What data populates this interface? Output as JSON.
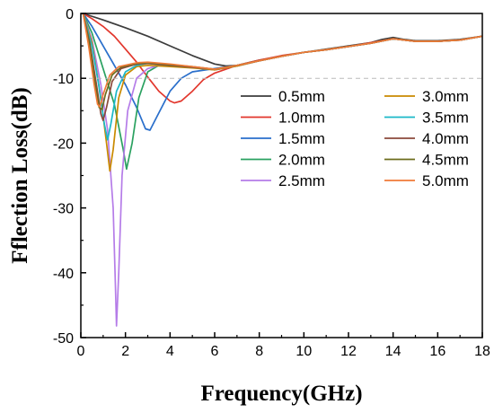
{
  "chart_data": {
    "type": "line",
    "title": "",
    "xlabel": "Frequency(GHz)",
    "ylabel": "Fflection Loss(dB)",
    "xlim": [
      0,
      18
    ],
    "ylim": [
      -50,
      0
    ],
    "xticks": [
      0,
      2,
      4,
      6,
      8,
      10,
      12,
      14,
      16,
      18
    ],
    "yticks": [
      0,
      -10,
      -20,
      -30,
      -40,
      -50
    ],
    "reference_line": {
      "y": -10,
      "style": "dashed",
      "color": "#bbbbbb"
    },
    "grid": false,
    "legend_position": "right-middle",
    "series": [
      {
        "name": "0.5mm",
        "color": "#3c3c3c",
        "points": [
          [
            0.1,
            0
          ],
          [
            1,
            -1
          ],
          [
            2,
            -2.2
          ],
          [
            3,
            -3.5
          ],
          [
            4,
            -5
          ],
          [
            5,
            -6.5
          ],
          [
            6,
            -7.8
          ],
          [
            6.5,
            -8.1
          ],
          [
            7,
            -8.0
          ],
          [
            8,
            -7.2
          ],
          [
            9,
            -6.6
          ],
          [
            10,
            -6.0
          ],
          [
            11,
            -5.5
          ],
          [
            12,
            -5.0
          ],
          [
            13,
            -4.5
          ],
          [
            13.5,
            -4.0
          ],
          [
            14,
            -3.7
          ],
          [
            14.5,
            -4.0
          ],
          [
            15,
            -4.2
          ],
          [
            16,
            -4.2
          ],
          [
            17,
            -4.0
          ],
          [
            18,
            -3.5
          ]
        ]
      },
      {
        "name": "1.0mm",
        "color": "#e2372d",
        "points": [
          [
            0.1,
            0
          ],
          [
            0.5,
            -0.8
          ],
          [
            1,
            -2.0
          ],
          [
            1.5,
            -3.5
          ],
          [
            2,
            -5.5
          ],
          [
            2.5,
            -7.5
          ],
          [
            3,
            -9.8
          ],
          [
            3.5,
            -12
          ],
          [
            4,
            -13.5
          ],
          [
            4.2,
            -13.8
          ],
          [
            4.5,
            -13.5
          ],
          [
            5,
            -12
          ],
          [
            5.5,
            -10.2
          ],
          [
            6,
            -9.2
          ],
          [
            7,
            -8.0
          ],
          [
            8,
            -7.2
          ],
          [
            9,
            -6.5
          ],
          [
            10,
            -6.0
          ],
          [
            11,
            -5.6
          ],
          [
            12,
            -5.1
          ],
          [
            13,
            -4.5
          ],
          [
            14,
            -3.9
          ],
          [
            15,
            -4.3
          ],
          [
            16,
            -4.3
          ],
          [
            17,
            -4.1
          ],
          [
            18,
            -3.5
          ]
        ]
      },
      {
        "name": "1.5mm",
        "color": "#2a6fcb",
        "points": [
          [
            0.1,
            0
          ],
          [
            0.5,
            -2
          ],
          [
            1,
            -5
          ],
          [
            1.5,
            -8
          ],
          [
            2,
            -11
          ],
          [
            2.5,
            -14.5
          ],
          [
            2.9,
            -17.8
          ],
          [
            3.1,
            -18.0
          ],
          [
            3.4,
            -16
          ],
          [
            4,
            -12
          ],
          [
            4.5,
            -10
          ],
          [
            5,
            -9
          ],
          [
            6,
            -8.5
          ],
          [
            7,
            -8.0
          ],
          [
            8,
            -7.3
          ],
          [
            9,
            -6.6
          ],
          [
            10,
            -6.0
          ],
          [
            11,
            -5.6
          ],
          [
            12,
            -5.1
          ],
          [
            13,
            -4.6
          ],
          [
            14,
            -3.9
          ],
          [
            15,
            -4.3
          ],
          [
            16,
            -4.3
          ],
          [
            17,
            -4.1
          ],
          [
            18,
            -3.5
          ]
        ]
      },
      {
        "name": "2.0mm",
        "color": "#2aa160",
        "points": [
          [
            0.1,
            0
          ],
          [
            0.5,
            -3
          ],
          [
            1,
            -8.5
          ],
          [
            1.5,
            -14
          ],
          [
            1.9,
            -21
          ],
          [
            2.05,
            -24
          ],
          [
            2.3,
            -20
          ],
          [
            2.6,
            -13
          ],
          [
            3,
            -9
          ],
          [
            3.5,
            -8
          ],
          [
            4,
            -8
          ],
          [
            5,
            -8.3
          ],
          [
            6,
            -8.7
          ],
          [
            7,
            -8.1
          ],
          [
            8,
            -7.3
          ],
          [
            9,
            -6.6
          ],
          [
            10,
            -6.0
          ],
          [
            11,
            -5.6
          ],
          [
            12,
            -5.1
          ],
          [
            13,
            -4.6
          ],
          [
            14,
            -3.9
          ],
          [
            15,
            -4.3
          ],
          [
            16,
            -4.3
          ],
          [
            17,
            -4.1
          ],
          [
            18,
            -3.5
          ]
        ]
      },
      {
        "name": "2.5mm",
        "color": "#b57ce8",
        "points": [
          [
            0.1,
            0
          ],
          [
            0.5,
            -4
          ],
          [
            0.9,
            -11
          ],
          [
            1.2,
            -18
          ],
          [
            1.45,
            -30
          ],
          [
            1.55,
            -42
          ],
          [
            1.6,
            -48.2
          ],
          [
            1.7,
            -40
          ],
          [
            1.85,
            -25
          ],
          [
            2.1,
            -15
          ],
          [
            2.5,
            -10
          ],
          [
            3,
            -8.5
          ],
          [
            3.5,
            -8
          ],
          [
            4,
            -8
          ],
          [
            5,
            -8.3
          ],
          [
            6,
            -8.7
          ],
          [
            7,
            -8.1
          ],
          [
            8,
            -7.3
          ],
          [
            9,
            -6.6
          ],
          [
            10,
            -6.0
          ],
          [
            11,
            -5.6
          ],
          [
            12,
            -5.1
          ],
          [
            13,
            -4.6
          ],
          [
            14,
            -3.9
          ],
          [
            15,
            -4.3
          ],
          [
            16,
            -4.3
          ],
          [
            17,
            -4.1
          ],
          [
            18,
            -3.5
          ]
        ]
      },
      {
        "name": "3.0mm",
        "color": "#c98a00",
        "points": [
          [
            0.1,
            0
          ],
          [
            0.5,
            -4.5
          ],
          [
            0.9,
            -13
          ],
          [
            1.15,
            -20
          ],
          [
            1.3,
            -24.3
          ],
          [
            1.45,
            -21
          ],
          [
            1.7,
            -13
          ],
          [
            2,
            -9.5
          ],
          [
            2.5,
            -8.2
          ],
          [
            3,
            -8
          ],
          [
            4,
            -8.2
          ],
          [
            5,
            -8.4
          ],
          [
            6,
            -8.7
          ],
          [
            7,
            -8.1
          ],
          [
            8,
            -7.3
          ],
          [
            9,
            -6.6
          ],
          [
            10,
            -6.0
          ],
          [
            11,
            -5.6
          ],
          [
            12,
            -5.1
          ],
          [
            13,
            -4.6
          ],
          [
            14,
            -3.9
          ],
          [
            15,
            -4.3
          ],
          [
            16,
            -4.3
          ],
          [
            17,
            -4.1
          ],
          [
            18,
            -3.5
          ]
        ]
      },
      {
        "name": "3.5mm",
        "color": "#1bb8c8",
        "points": [
          [
            0.1,
            0
          ],
          [
            0.5,
            -5
          ],
          [
            0.8,
            -11
          ],
          [
            1.05,
            -17
          ],
          [
            1.2,
            -19.5
          ],
          [
            1.35,
            -17
          ],
          [
            1.6,
            -12
          ],
          [
            2,
            -9
          ],
          [
            2.5,
            -8
          ],
          [
            3,
            -7.7
          ],
          [
            4,
            -8
          ],
          [
            5,
            -8.3
          ],
          [
            6,
            -8.6
          ],
          [
            7,
            -8.0
          ],
          [
            8,
            -7.3
          ],
          [
            9,
            -6.6
          ],
          [
            10,
            -6.0
          ],
          [
            11,
            -5.6
          ],
          [
            12,
            -5.1
          ],
          [
            13,
            -4.6
          ],
          [
            14,
            -3.9
          ],
          [
            15,
            -4.3
          ],
          [
            16,
            -4.3
          ],
          [
            17,
            -4.1
          ],
          [
            18,
            -3.5
          ]
        ]
      },
      {
        "name": "4.0mm",
        "color": "#8b4a3c",
        "points": [
          [
            0.1,
            0
          ],
          [
            0.4,
            -4.5
          ],
          [
            0.7,
            -11
          ],
          [
            0.9,
            -15.5
          ],
          [
            1.0,
            -16.5
          ],
          [
            1.15,
            -14.5
          ],
          [
            1.4,
            -10.5
          ],
          [
            1.8,
            -8.5
          ],
          [
            2.5,
            -7.8
          ],
          [
            3,
            -7.7
          ],
          [
            4,
            -8
          ],
          [
            5,
            -8.3
          ],
          [
            6,
            -8.6
          ],
          [
            7,
            -8.0
          ],
          [
            8,
            -7.3
          ],
          [
            9,
            -6.6
          ],
          [
            10,
            -6.0
          ],
          [
            11,
            -5.6
          ],
          [
            12,
            -5.1
          ],
          [
            13,
            -4.6
          ],
          [
            14,
            -3.9
          ],
          [
            15,
            -4.3
          ],
          [
            16,
            -4.3
          ],
          [
            17,
            -4.1
          ],
          [
            18,
            -3.5
          ]
        ]
      },
      {
        "name": "4.5mm",
        "color": "#6c6c1c",
        "points": [
          [
            0.1,
            0
          ],
          [
            0.4,
            -5
          ],
          [
            0.65,
            -11
          ],
          [
            0.82,
            -14.5
          ],
          [
            0.95,
            -14.8
          ],
          [
            1.1,
            -12.5
          ],
          [
            1.4,
            -9.5
          ],
          [
            1.8,
            -8.3
          ],
          [
            2.5,
            -7.7
          ],
          [
            3,
            -7.6
          ],
          [
            4,
            -7.9
          ],
          [
            5,
            -8.2
          ],
          [
            6,
            -8.6
          ],
          [
            7,
            -8.0
          ],
          [
            8,
            -7.3
          ],
          [
            9,
            -6.6
          ],
          [
            10,
            -6.0
          ],
          [
            11,
            -5.6
          ],
          [
            12,
            -5.1
          ],
          [
            13,
            -4.6
          ],
          [
            14,
            -3.9
          ],
          [
            15,
            -4.3
          ],
          [
            16,
            -4.3
          ],
          [
            17,
            -4.1
          ],
          [
            18,
            -3.5
          ]
        ]
      },
      {
        "name": "5.0mm",
        "color": "#f07a38",
        "points": [
          [
            0.1,
            0
          ],
          [
            0.35,
            -5
          ],
          [
            0.6,
            -11
          ],
          [
            0.75,
            -14
          ],
          [
            0.85,
            -14.4
          ],
          [
            1.0,
            -12.5
          ],
          [
            1.3,
            -9.5
          ],
          [
            1.7,
            -8.2
          ],
          [
            2.5,
            -7.6
          ],
          [
            3,
            -7.5
          ],
          [
            4,
            -7.8
          ],
          [
            5,
            -8.2
          ],
          [
            6,
            -8.6
          ],
          [
            7,
            -8.0
          ],
          [
            8,
            -7.3
          ],
          [
            9,
            -6.6
          ],
          [
            10,
            -6.0
          ],
          [
            11,
            -5.6
          ],
          [
            12,
            -5.1
          ],
          [
            13,
            -4.6
          ],
          [
            14,
            -3.9
          ],
          [
            15,
            -4.3
          ],
          [
            16,
            -4.3
          ],
          [
            17,
            -4.1
          ],
          [
            18,
            -3.5
          ]
        ]
      }
    ]
  }
}
